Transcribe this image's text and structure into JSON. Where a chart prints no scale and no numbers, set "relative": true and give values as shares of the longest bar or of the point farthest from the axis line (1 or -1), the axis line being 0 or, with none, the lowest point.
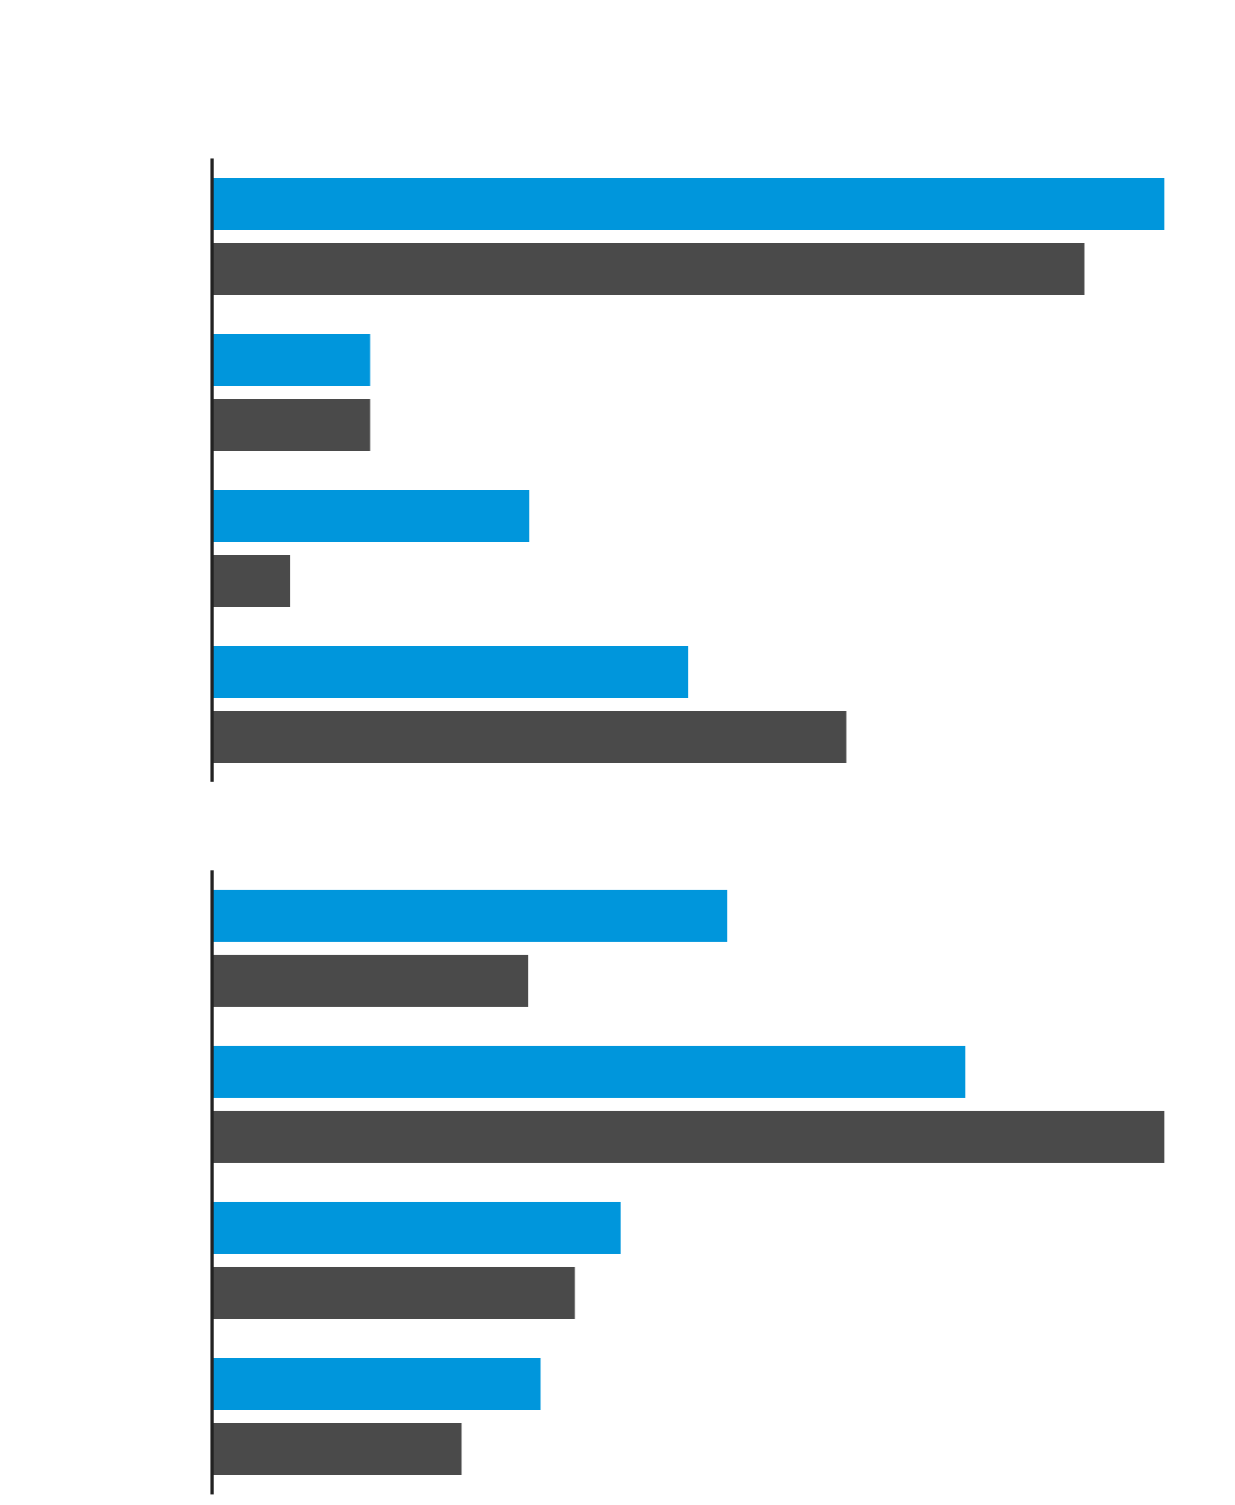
{
  "chart_data": [
    {
      "type": "bar",
      "orientation": "horizontal",
      "relative": true,
      "categories": [
        null,
        null,
        null,
        null
      ],
      "series": [
        {
          "color": "#0096dc",
          "values": [
            1,
            0.166,
            0.333,
            0.5
          ]
        },
        {
          "color": "#4a4a4a",
          "values": [
            0.916,
            0.166,
            0.082,
            0.666
          ]
        }
      ]
    },
    {
      "type": "bar",
      "orientation": "horizontal",
      "relative": true,
      "categories": [
        null,
        null,
        null,
        null
      ],
      "series": [
        {
          "color": "#0096dc",
          "values": [
            0.541,
            0.791,
            0.429,
            0.345
          ]
        },
        {
          "color": "#4a4a4a",
          "values": [
            0.332,
            1,
            0.381,
            0.262
          ]
        }
      ]
    }
  ]
}
